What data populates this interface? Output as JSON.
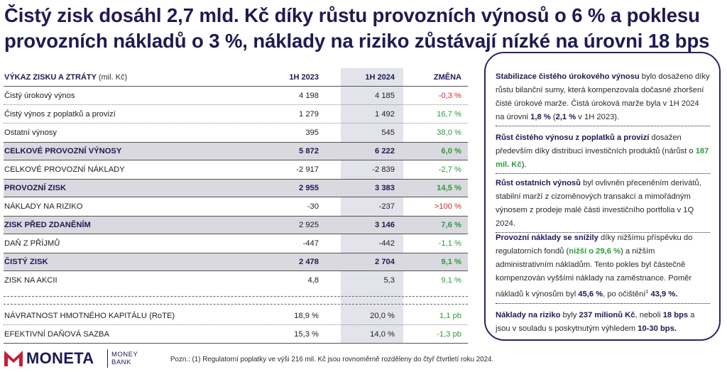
{
  "title": "Čistý zisk dosáhl 2,7 mld. Kč díky růstu provozních výnosů o 6 % a poklesu provozních nákladů o 3 %, náklady na riziko zůstávají nízké na úrovni 18 bps",
  "table": {
    "header": {
      "label": "VÝKAZ ZISKU A ZTRÁTY",
      "unit": "(mil. Kč)",
      "col1": "1H 2023",
      "col2": "1H 2024",
      "col3": "ZMĚNA"
    },
    "rows": [
      {
        "label": "Čistý úrokový výnos",
        "v23": "4 198",
        "v24": "4 185",
        "chg": "-0,3 %"
      },
      {
        "label": "Čistý výnos z poplatků a provizí",
        "v23": "1 279",
        "v24": "1 492",
        "chg": "16,7 %"
      },
      {
        "label": "Ostatní výnosy",
        "v23": "395",
        "v24": "545",
        "chg": "38,0 %"
      },
      {
        "label": "CELKOVÉ PROVOZNÍ VÝNOSY",
        "v23": "5 872",
        "v24": "6 222",
        "chg": "6,0 %"
      },
      {
        "label": "CELKOVÉ PROVOZNÍ NÁKLADY",
        "v23": "-2 917",
        "v24": "-2 839",
        "chg": "-2,7 %"
      },
      {
        "label": "PROVOZNÍ ZISK",
        "v23": "2 955",
        "v24": "3 383",
        "chg": "14,5 %"
      },
      {
        "label": "NÁKLADY NA RIZIKO",
        "v23": "-30",
        "v24": "-237",
        "chg": ">100 %"
      },
      {
        "label": "ZISK PŘED ZDANĚNÍM",
        "v23": "2 925",
        "v24": "3 146",
        "chg": "7,6 %"
      },
      {
        "label": "DAŇ Z PŘÍJMŮ",
        "v23": "-447",
        "v24": "-442",
        "chg": "-1,1 %"
      },
      {
        "label": "ČISTÝ ZISK",
        "v23": "2 478",
        "v24": "2 704",
        "chg": "9,1 %"
      },
      {
        "label": "ZISK NA AKCII",
        "v23": "4,8",
        "v24": "5,3",
        "chg": "9,1 %"
      },
      {
        "label": "NÁVRATNOST HMOTNÉHO KAPITÁLU (RoTE)",
        "v23": "18,9 %",
        "v24": "20,0 %",
        "chg": "1,1 pb"
      },
      {
        "label": "EFEKTIVNÍ DAŇOVÁ SAZBA",
        "v23": "15,3 %",
        "v24": "14,0 %",
        "chg": "-1,3 pb"
      }
    ]
  },
  "panel": {
    "p1": {
      "b1": "Stabilizace čistého úrokového výnosu",
      "t1": " bylo dosaženo díky růstu bilanční sumy, která kompenzovala dočasné zhoršení čisté úrokové marže. Čistá úroková marže byla v 1H 2024 na úrovni ",
      "b2": "1,8 %",
      "t2": " (",
      "b3": "2,1 %",
      "t3": " v 1H 2023)."
    },
    "p2": {
      "b1": "Růst čistého výnosu z poplatků a provizí",
      "t1": " dosažen především díky distribuci investičních produktů (nárůst o ",
      "g1": "187 mil. Kč",
      "t2": ")."
    },
    "p3": {
      "b1": "Růst ostatních výnosů",
      "t1": "  byl ovlivněn přeceněním derivátů, stabilní marží z cizoměnových transakcí a mimořádným výnosem z prodeje malé části investičního portfolia v 1Q 2024."
    },
    "p4": {
      "b1": "Provozní náklady se snížily",
      "t1": " díky nižšímu příspěvku do regulatorních fondů (",
      "g1": "nižší o 29,6 %",
      "t2": ") a nižším administrativním  nákladům. Tento pokles byl částečně kompenzován vyššími náklady na zaměstnance. Poměr nákladů k výnosům byl ",
      "b2": "45,6 %",
      "t3": ", po očištění",
      "sup": "1",
      "t4": " ",
      "b3": "43,9 %."
    },
    "p5": {
      "b1": "Náklady na riziko",
      "t1": " byly ",
      "b2": "237 milionů Kč",
      "t2": ", neboli ",
      "b3": "18 bps",
      "t3": "  a jsou v souladu s poskytnutým výhledem ",
      "b4": "10-30 bps."
    }
  },
  "footer": {
    "logo_main": "MONETA",
    "logo_sub1": "MONEY",
    "logo_sub2": "BANK",
    "note": "Pozn.: (1) Regulatorní poplatky ve výši 216 mil. Kč jsou rovnoměrně rozděleny do čtyř čtvrtletí roku 2024."
  },
  "colors": {
    "brand": "#1e1a52",
    "positive": "#2e9a3a",
    "negative": "#d22a2a",
    "highlight_col": "#e3e3ec",
    "bold_row": "#d9d9df"
  }
}
